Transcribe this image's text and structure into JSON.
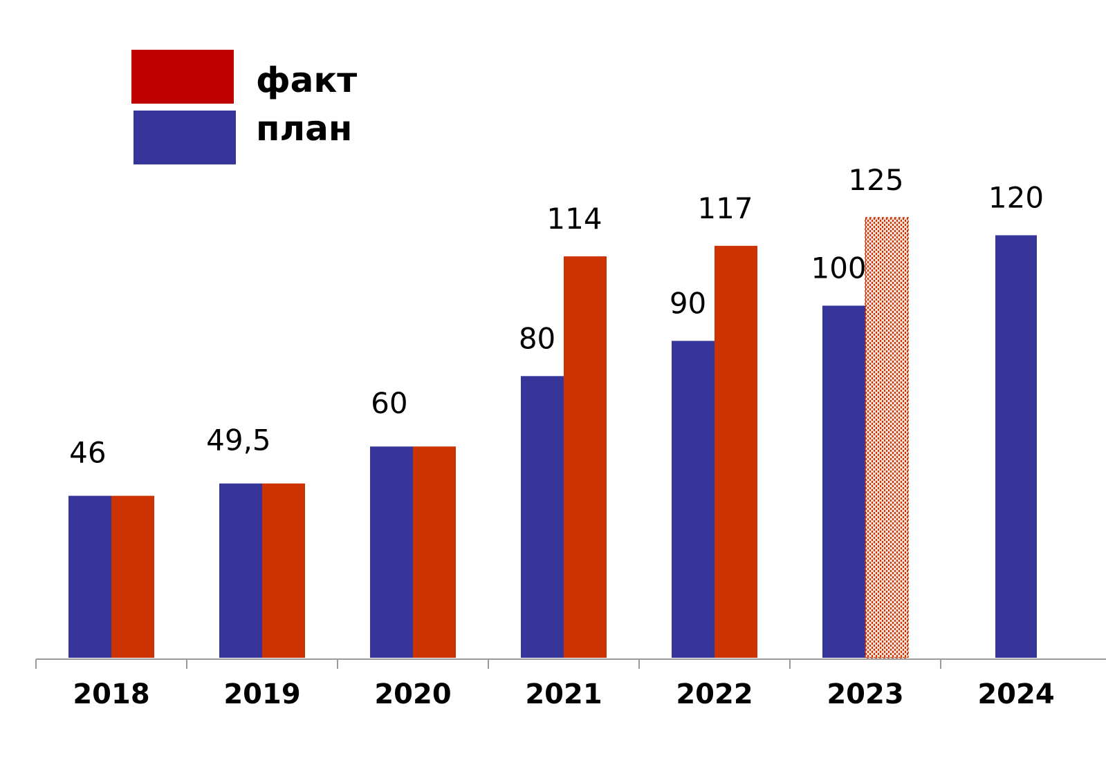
{
  "chart_data": {
    "type": "bar",
    "categories": [
      "2018",
      "2019",
      "2020",
      "2021",
      "2022",
      "2023",
      "2024"
    ],
    "series": [
      {
        "name": "план",
        "color": "#36359A",
        "values": [
          46,
          49.5,
          60,
          80,
          90,
          100,
          120
        ],
        "labels": [
          "46",
          "49,5",
          "60",
          "80",
          "90",
          "100",
          "120"
        ]
      },
      {
        "name": "факт",
        "color": "#CC3300",
        "values": [
          46,
          49.5,
          60,
          114,
          117,
          125,
          null
        ],
        "labels": [
          "",
          "",
          "",
          "114",
          "117",
          "125",
          ""
        ],
        "hatched_categories": [
          "2023"
        ]
      }
    ],
    "legend": {
      "position": "top-left",
      "entries": [
        {
          "label": "факт",
          "color": "#C00000"
        },
        {
          "label": "план",
          "color": "#36359A"
        }
      ]
    },
    "ylim": [
      0,
      125
    ],
    "title": "",
    "xlabel": "",
    "ylabel": "",
    "grid": false
  }
}
